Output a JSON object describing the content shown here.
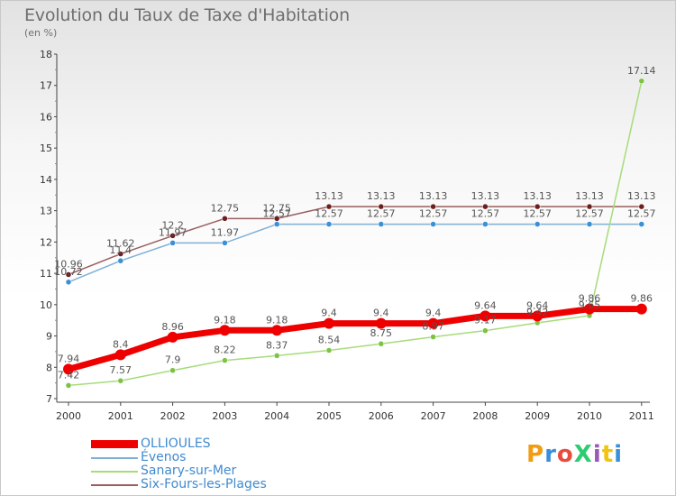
{
  "header": {
    "title": "Evolution du Taux de Taxe d'Habitation",
    "subtitle": "(en %)"
  },
  "logo": {
    "text": "ProXiti",
    "colors": [
      "#f39c12",
      "#3a8fd8",
      "#e74c3c",
      "#2ecc71",
      "#9b59b6",
      "#f1c40f",
      "#3a8fd8"
    ]
  },
  "chart_data": {
    "type": "line",
    "title": "Evolution du Taux de Taxe d'Habitation",
    "subtitle": "(en %)",
    "x": [
      "2000",
      "2001",
      "2002",
      "2003",
      "2004",
      "2005",
      "2006",
      "2007",
      "2008",
      "2009",
      "2010",
      "2011"
    ],
    "y_ticks": [
      "7",
      "8",
      "9",
      "10",
      "11",
      "12",
      "13",
      "14",
      "15",
      "16",
      "17",
      "18"
    ],
    "ylim": [
      7,
      18
    ],
    "grid": false,
    "legend_position": "bottom-left",
    "series": [
      {
        "name": "OLLIOULES",
        "color": "#ee0000",
        "marker": "#ee0000",
        "width": 7,
        "values": [
          7.94,
          8.4,
          8.96,
          9.18,
          9.18,
          9.4,
          9.4,
          9.4,
          9.64,
          9.64,
          9.86,
          9.86
        ],
        "labels": [
          "7.94",
          "8.4",
          "8.96",
          "9.18",
          "9.18",
          "9.4",
          "9.4",
          "9.4",
          "9.64",
          "9.64",
          "9.86",
          "9.86"
        ]
      },
      {
        "name": "Évenos",
        "color": "#7fb0d6",
        "marker": "#3a8fd8",
        "width": 1.5,
        "values": [
          10.72,
          11.4,
          11.97,
          11.97,
          12.57,
          12.57,
          12.57,
          12.57,
          12.57,
          12.57,
          12.57,
          12.57
        ],
        "labels": [
          "10.72",
          "11.4",
          "11.97",
          "11.97",
          "12.57",
          "12.57",
          "12.57",
          "12.57",
          "12.57",
          "12.57",
          "12.57",
          "12.57"
        ]
      },
      {
        "name": "Sanary-sur-Mer",
        "color": "#a6dc7a",
        "marker": "#7dc242",
        "width": 1.5,
        "values": [
          7.42,
          7.57,
          7.9,
          8.22,
          8.37,
          8.54,
          8.75,
          8.97,
          9.17,
          9.42,
          9.65,
          17.14
        ],
        "labels": [
          "7.42",
          "7.57",
          "7.9",
          "8.22",
          "8.37",
          "8.54",
          "8.75",
          "8.97",
          "9.17",
          "9.42",
          "9.65",
          "17.14"
        ]
      },
      {
        "name": "Six-Fours-les-Plages",
        "color": "#9a5e5e",
        "marker": "#6b1f1f",
        "width": 1.5,
        "values": [
          10.96,
          11.62,
          12.2,
          12.75,
          12.75,
          13.13,
          13.13,
          13.13,
          13.13,
          13.13,
          13.13,
          13.13
        ],
        "labels": [
          "10.96",
          "11.62",
          "12.2",
          "12.75",
          "12.75",
          "13.13",
          "13.13",
          "13.13",
          "13.13",
          "13.13",
          "13.13",
          "13.13"
        ]
      }
    ]
  }
}
